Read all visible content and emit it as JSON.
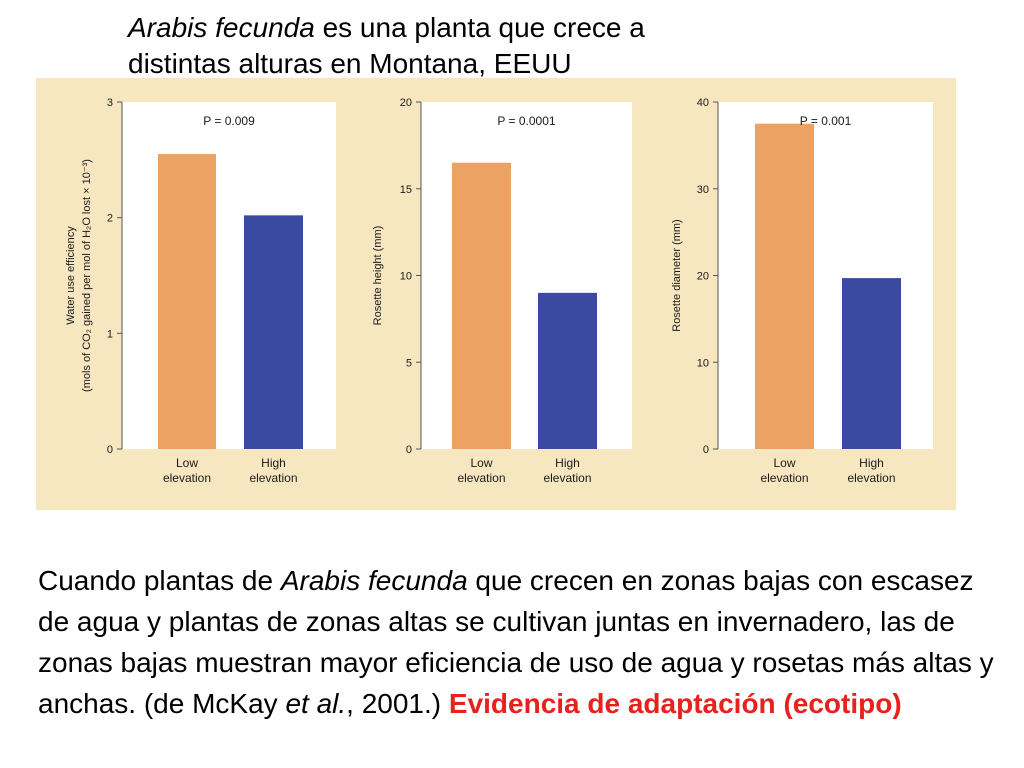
{
  "title": {
    "species": "Arabis fecunda",
    "line1_rest": " es una planta que crece a",
    "line2": "distintas alturas en Montana, EEUU"
  },
  "colors": {
    "panel_bg": "#f6e7c1",
    "plot_bg": "#ffffff",
    "low_bar": "#eba263",
    "high_bar": "#3b4aa1",
    "emphasis": "#e8211e"
  },
  "chart_data": [
    {
      "type": "bar",
      "categories": [
        "Low elevation",
        "High elevation"
      ],
      "category_lines": [
        [
          "Low",
          "elevation"
        ],
        [
          "High",
          "elevation"
        ]
      ],
      "values": [
        2.55,
        2.02
      ],
      "ylim": [
        0,
        3
      ],
      "yticks": [
        0,
        1,
        2,
        3
      ],
      "ylabel_lines": [
        "Water use efficiency",
        "(mols of CO₂ gained per mol of H₂O lost × 10⁻³)"
      ],
      "p_label": "P = 0.009"
    },
    {
      "type": "bar",
      "categories": [
        "Low elevation",
        "High elevation"
      ],
      "category_lines": [
        [
          "Low",
          "elevation"
        ],
        [
          "High",
          "elevation"
        ]
      ],
      "values": [
        16.5,
        9.0
      ],
      "ylim": [
        0,
        20
      ],
      "yticks": [
        0,
        5,
        10,
        15,
        20
      ],
      "ylabel_lines": [
        "Rosette height (mm)"
      ],
      "p_label": "P = 0.0001"
    },
    {
      "type": "bar",
      "categories": [
        "Low elevation",
        "High elevation"
      ],
      "category_lines": [
        [
          "Low",
          "elevation"
        ],
        [
          "High",
          "elevation"
        ]
      ],
      "values": [
        37.5,
        19.7
      ],
      "ylim": [
        0,
        40
      ],
      "yticks": [
        0,
        10,
        20,
        30,
        40
      ],
      "ylabel_lines": [
        "Rosette diameter (mm)"
      ],
      "p_label": "P = 0.001"
    }
  ],
  "caption": {
    "t1": "Cuando plantas de ",
    "t2": "Arabis fecunda",
    "t3": " que crecen en zonas bajas con escasez de agua y plantas de zonas altas se cultivan juntas en invernadero, las de zonas bajas muestran mayor eficiencia de uso de agua y rosetas más altas y anchas. (de McKay ",
    "t4": "et al.",
    "t5": ", 2001.)  ",
    "emphasis": "Evidencia de adaptación (ecotipo)"
  }
}
